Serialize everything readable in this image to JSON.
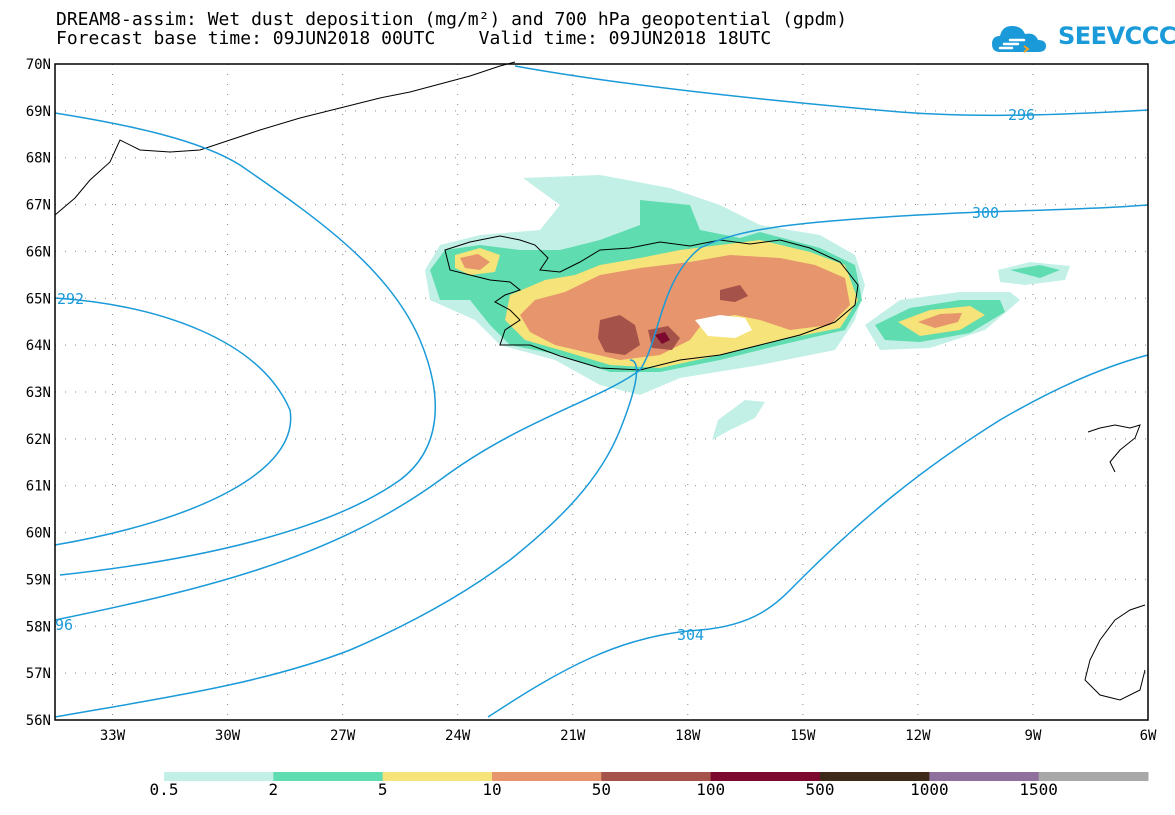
{
  "title": {
    "line1": "DREAM8-assim: Wet dust deposition (mg/m²) and 700 hPa geopotential (gpdm)",
    "line2": "Forecast base time: 09JUN2018 00UTC    Valid time: 09JUN2018 18UTC"
  },
  "logo": {
    "text": "SEEVCCC",
    "color": "#1a9ad8"
  },
  "map": {
    "lon_range": [
      -34.5,
      -6
    ],
    "lat_range": [
      56,
      70
    ],
    "lat_labels": [
      "70N",
      "69N",
      "68N",
      "67N",
      "66N",
      "65N",
      "64N",
      "63N",
      "62N",
      "61N",
      "60N",
      "59N",
      "58N",
      "57N",
      "56N"
    ],
    "lon_labels": [
      "33W",
      "30W",
      "27W",
      "24W",
      "21W",
      "18W",
      "15W",
      "12W",
      "9W",
      "6W"
    ],
    "contour_color": "#1a9ad8",
    "contour_labels": [
      "296",
      "300",
      "292",
      "96",
      "304"
    ]
  },
  "legend": {
    "labels": [
      "0.5",
      "2",
      "5",
      "10",
      "50",
      "100",
      "500",
      "1000",
      "1500"
    ],
    "colors": [
      "#c3f0e6",
      "#5fdcb0",
      "#f6e37a",
      "#e6956c",
      "#a5524b",
      "#7c0a2e",
      "#3d2a18",
      "#8f6f9c",
      "#a8a8a8"
    ]
  }
}
